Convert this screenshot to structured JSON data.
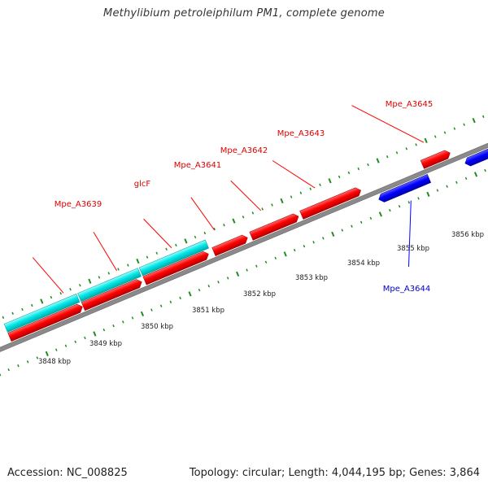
{
  "header": {
    "title": "Methylibium petroleiphilum PM1, complete genome"
  },
  "footer": {
    "accession": "Accession: NC_008825",
    "summary": "Topology: circular; Length: 4,044,195 bp; Genes: 3,864"
  },
  "colors": {
    "forward_gene": "#ff0000",
    "reverse_gene": "#0000ff",
    "rna_feature": "#00e5e5",
    "backbone": "#808080",
    "ticks": "#228b22"
  },
  "gene_labels": {
    "mpe_a3639": "Mpe_A3639",
    "glcf": "glcF",
    "mpe_a3641": "Mpe_A3641",
    "mpe_a3642": "Mpe_A3642",
    "mpe_a3643": "Mpe_A3643",
    "mpe_a3645": "Mpe_A3645",
    "mpe_a3644": "Mpe_A3644"
  },
  "scale_labels": {
    "k3848": "3848 kbp",
    "k3849": "3849 kbp",
    "k3850": "3850 kbp",
    "k3851": "3851 kbp",
    "k3852": "3852 kbp",
    "k3853": "3853 kbp",
    "k3854": "3854 kbp",
    "k3855": "3855 kbp",
    "k3856": "3856 kbp"
  }
}
